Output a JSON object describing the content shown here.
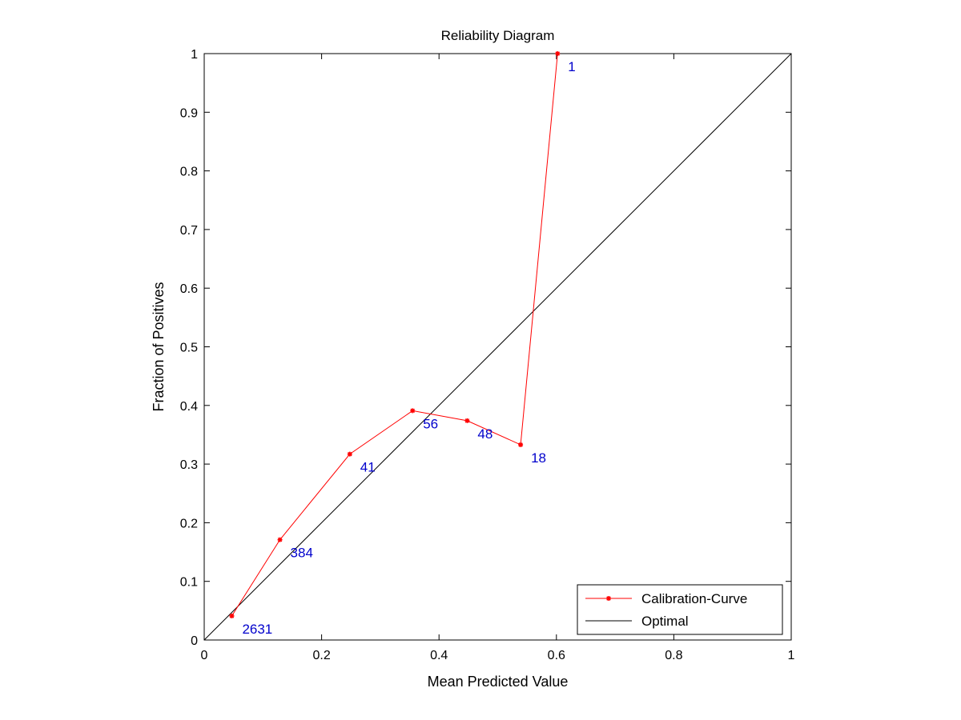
{
  "chart_data": {
    "type": "line",
    "title": "Reliability Diagram",
    "xlabel": "Mean Predicted Value",
    "ylabel": "Fraction of Positives",
    "xlim": [
      0,
      1
    ],
    "ylim": [
      0,
      1
    ],
    "xticks": [
      0,
      0.2,
      0.4,
      0.6,
      0.8,
      1
    ],
    "xtick_labels": [
      "0",
      "0.2",
      "0.4",
      "0.6",
      "0.8",
      "1"
    ],
    "yticks": [
      0,
      0.1,
      0.2,
      0.3,
      0.4,
      0.5,
      0.6,
      0.7,
      0.8,
      0.9,
      1
    ],
    "ytick_labels": [
      "0",
      "0.1",
      "0.2",
      "0.3",
      "0.4",
      "0.5",
      "0.6",
      "0.7",
      "0.8",
      "0.9",
      "1"
    ],
    "grid": false,
    "legend_position": "bottom-right",
    "series": [
      {
        "name": "Calibration-Curve",
        "color": "#ff0000",
        "marker": "asterisk",
        "x": [
          0.047,
          0.129,
          0.248,
          0.355,
          0.448,
          0.539,
          0.602
        ],
        "y": [
          0.041,
          0.171,
          0.317,
          0.391,
          0.374,
          0.333,
          1.0
        ],
        "point_labels": [
          "2631",
          "384",
          "41",
          "56",
          "48",
          "18",
          "1"
        ],
        "point_label_color": "#0000cc"
      },
      {
        "name": "Optimal",
        "color": "#000000",
        "marker": "none",
        "x": [
          0,
          1
        ],
        "y": [
          0,
          1
        ]
      }
    ]
  }
}
